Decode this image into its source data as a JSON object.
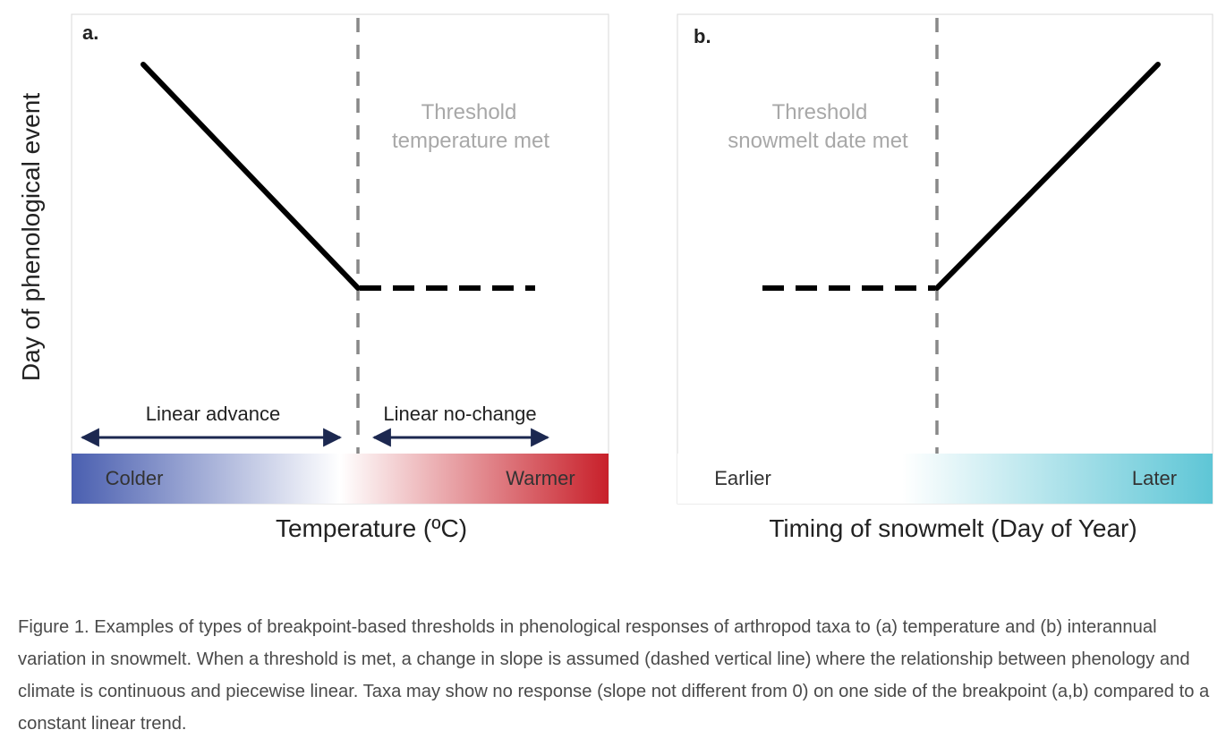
{
  "panel_a": {
    "label": "a.",
    "threshold_text": [
      "Threshold",
      "temperature met"
    ],
    "left_range_label": "Linear advance",
    "right_range_label": "Linear no-change",
    "bar_left_label": "Colder",
    "bar_right_label": "Warmer",
    "xlabel": "Temperature (ºC)",
    "ylabel": "Day of phenological event",
    "colors": {
      "cold": "#4a5fb0",
      "warm": "#c8202a",
      "arrow": "#1c2850"
    }
  },
  "panel_b": {
    "label": "b.",
    "threshold_text": [
      "Threshold",
      "snowmelt date met"
    ],
    "bar_left_label": "Earlier",
    "bar_right_label": "Later",
    "xlabel": "Timing of snowmelt (Day of Year)",
    "colors": {
      "late": "#5ec6d6"
    }
  },
  "caption": "Figure 1. Examples of types of breakpoint-based thresholds in phenological responses of arthropod taxa to (a) temperature and (b) interannual variation in snowmelt. When a threshold is met, a change in slope is assumed (dashed vertical line) where the relationship between phenology and climate is continuous and piecewise linear. Taxa may show no response (slope not different from 0) on one side of the breakpoint (a,b) compared to a constant linear trend."
}
